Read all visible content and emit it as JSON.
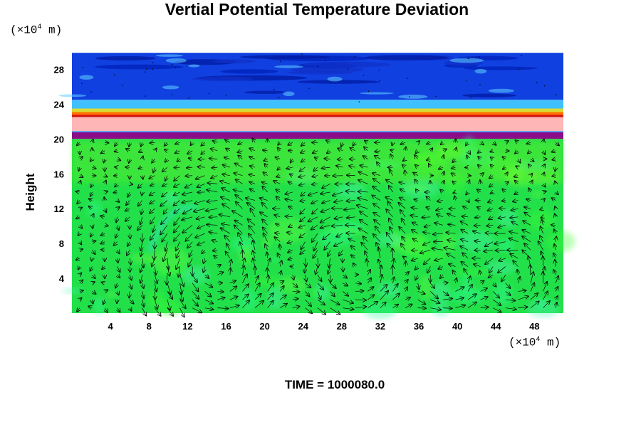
{
  "chart_data": {
    "type": "heatmap",
    "title": "Vertial Potential Temperature Deviation",
    "ylabel": "Height",
    "y_unit": {
      "base": "(×10",
      "exp": "4",
      "rest": " m)"
    },
    "x_unit": {
      "base": "(×10",
      "exp": "4",
      "rest": " m)"
    },
    "xlim": [
      0,
      51
    ],
    "ylim": [
      0,
      30
    ],
    "x_ticks": [
      4,
      8,
      12,
      16,
      20,
      24,
      28,
      32,
      36,
      40,
      44,
      48
    ],
    "y_ticks": [
      4,
      8,
      12,
      16,
      20,
      24,
      28
    ],
    "layers": [
      {
        "name": "upper-cold-band",
        "y_range": [
          24.5,
          29.9
        ],
        "color": "#1040e0"
      },
      {
        "name": "transition-band",
        "y_range": [
          22.5,
          24.5
        ],
        "color": "#40c0ff"
      },
      {
        "name": "warm-ridge",
        "y_range": [
          22.5,
          23.0
        ],
        "color": "#e02020"
      },
      {
        "name": "stable-layer",
        "y_range": [
          20.8,
          22.5
        ],
        "color": "#ffb6b6"
      },
      {
        "name": "inversion-band",
        "y_range": [
          20.0,
          20.8
        ],
        "color": "#8a0a8a"
      },
      {
        "name": "lower-domain",
        "y_range": [
          0,
          20.0
        ],
        "color": "#22e04a"
      }
    ],
    "circulation_cells": [
      {
        "center_x": 15.0,
        "center_y": 5.5,
        "radius_x": 7.0,
        "radius_y": 10.0
      },
      {
        "center_x": 29.0,
        "center_y": 5.5,
        "radius_x": 6.0,
        "radius_y": 10.0
      },
      {
        "center_x": 39.0,
        "center_y": 4.0,
        "radius_x": 4.0,
        "radius_y": 6.0
      },
      {
        "center_x": 46.0,
        "center_y": 4.0,
        "radius_x": 3.5,
        "radius_y": 6.0
      }
    ],
    "time_label": "TIME =",
    "time_value": "1000080.0"
  }
}
